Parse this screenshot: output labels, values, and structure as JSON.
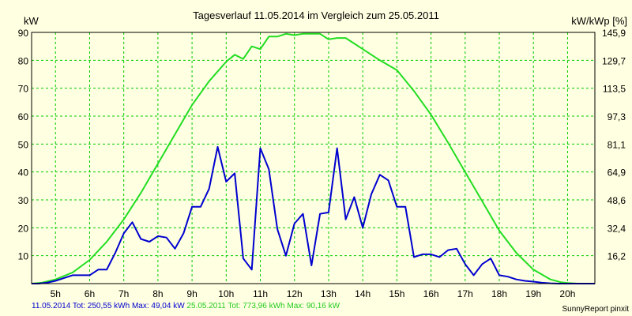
{
  "chart_data": {
    "type": "line",
    "title": "Tagesverlauf 11.05.2014 im Vergleich zum 25.05.2011",
    "ylabel_left": "kW",
    "ylabel_right": "kW/kWp [%]",
    "ylim": [
      0,
      90
    ],
    "xlim": [
      4.3,
      20.8
    ],
    "y_ticks_left": [
      "10",
      "20",
      "30",
      "40",
      "50",
      "60",
      "70",
      "80",
      "90"
    ],
    "y_ticks_right": [
      "16,2",
      "32,4",
      "48,6",
      "64,9",
      "81,1",
      "97,3",
      "113,5",
      "129,7",
      "145,9"
    ],
    "x_ticks": [
      "5h",
      "6h",
      "7h",
      "8h",
      "9h",
      "10h",
      "11h",
      "12h",
      "13h",
      "14h",
      "15h",
      "16h",
      "17h",
      "18h",
      "19h",
      "20h"
    ],
    "grid": true,
    "colors": {
      "series_2014": "#0000d0",
      "series_2011": "#22dd22",
      "grid": "#00cc00",
      "background": "#ffffe1"
    },
    "series": [
      {
        "name": "11.05.2014",
        "x": [
          4.3,
          4.5,
          4.75,
          5.0,
          5.25,
          5.5,
          5.75,
          6.0,
          6.25,
          6.5,
          6.75,
          7.0,
          7.25,
          7.5,
          7.75,
          8.0,
          8.25,
          8.5,
          8.75,
          9.0,
          9.25,
          9.5,
          9.75,
          10.0,
          10.25,
          10.5,
          10.75,
          11.0,
          11.25,
          11.5,
          11.75,
          12.0,
          12.25,
          12.5,
          12.75,
          13.0,
          13.25,
          13.5,
          13.75,
          14.0,
          14.25,
          14.5,
          14.75,
          15.0,
          15.25,
          15.5,
          15.75,
          16.0,
          16.25,
          16.5,
          16.75,
          17.0,
          17.25,
          17.5,
          17.75,
          18.0,
          18.25,
          18.5,
          18.75,
          19.0,
          19.25,
          19.5,
          19.75,
          20.0,
          20.25,
          20.5,
          20.8
        ],
        "values": [
          0,
          0,
          0.3,
          1,
          2,
          3,
          3,
          3,
          5,
          5,
          11,
          18,
          22,
          16,
          15,
          17,
          16.5,
          12.5,
          18,
          27.5,
          27.5,
          34,
          49,
          36.5,
          39.5,
          9,
          5,
          48.5,
          41,
          19.5,
          10,
          21.5,
          25,
          6.5,
          25,
          25.5,
          48.5,
          23,
          31,
          20,
          32,
          39,
          37,
          27.5,
          27.5,
          9.5,
          10.5,
          10.5,
          9.5,
          12,
          12.5,
          7,
          3,
          7,
          9,
          3,
          2.5,
          1.5,
          1,
          0.7,
          0.3,
          0.1,
          0,
          0,
          0,
          0,
          0
        ]
      },
      {
        "name": "25.05.2011",
        "x": [
          4.3,
          4.6,
          5.0,
          5.5,
          6.0,
          6.5,
          7.0,
          7.5,
          8.0,
          8.5,
          9.0,
          9.5,
          10.0,
          10.25,
          10.5,
          10.75,
          11.0,
          11.25,
          11.5,
          11.75,
          12.0,
          12.25,
          12.5,
          12.75,
          13.0,
          13.25,
          13.5,
          13.75,
          14.0,
          14.5,
          15.0,
          15.5,
          16.0,
          16.5,
          17.0,
          17.5,
          18.0,
          18.5,
          19.0,
          19.5,
          19.8,
          20.0,
          20.3,
          20.8
        ],
        "values": [
          0,
          0.3,
          1.5,
          4,
          8.5,
          15,
          23,
          32.5,
          43,
          53.5,
          64,
          72.5,
          79.5,
          82,
          80.5,
          85,
          84,
          88.5,
          88.5,
          89.5,
          89,
          89.5,
          89.5,
          89.5,
          87.5,
          88,
          88,
          86,
          84,
          80,
          76.5,
          69,
          60.5,
          50.5,
          40,
          29.5,
          19,
          11,
          5,
          1.5,
          0.5,
          0.2,
          0,
          0
        ]
      }
    ]
  },
  "footer": {
    "series_2014_label": "11.05.2014 Tot: 250,55 kWh Max: 49,04 kW",
    "series_2011_label": "25.05.2011 Tot: 773,96 kWh Max: 90,16 kW",
    "credit": "SunnyReport pinxit"
  }
}
